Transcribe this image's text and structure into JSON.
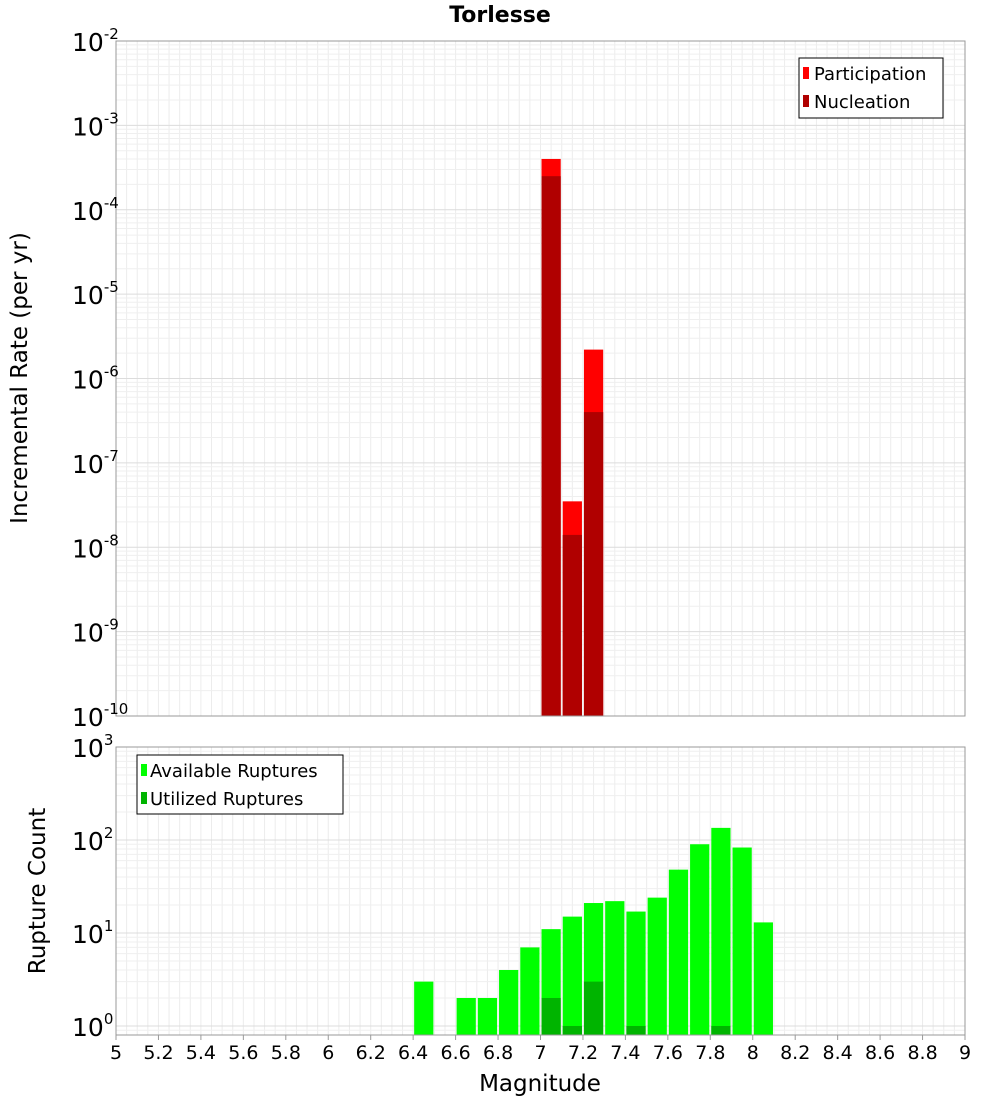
{
  "title": "Torlesse",
  "xlabel": "Magnitude",
  "x_ticks": [
    "5",
    "5.2",
    "5.4",
    "5.6",
    "5.8",
    "6",
    "6.2",
    "6.4",
    "6.6",
    "6.8",
    "7",
    "7.2",
    "7.4",
    "7.6",
    "7.8",
    "8",
    "8.2",
    "8.4",
    "8.6",
    "8.8",
    "9"
  ],
  "chart_data": [
    {
      "type": "bar",
      "ylabel": "Incremental Rate (per yr)",
      "yscale": "log",
      "ylim": [
        1e-10,
        0.01
      ],
      "xlim": [
        5,
        9
      ],
      "bin_width": 0.1,
      "y_ticks": [
        {
          "base": "10",
          "exp": "-2"
        },
        {
          "base": "10",
          "exp": "-3"
        },
        {
          "base": "10",
          "exp": "-4"
        },
        {
          "base": "10",
          "exp": "-5"
        },
        {
          "base": "10",
          "exp": "-6"
        },
        {
          "base": "10",
          "exp": "-7"
        },
        {
          "base": "10",
          "exp": "-8"
        },
        {
          "base": "10",
          "exp": "-9"
        },
        {
          "base": "10",
          "exp": "-10"
        }
      ],
      "grid": true,
      "legend_position": "top-right",
      "series": [
        {
          "name": "Participation",
          "color": "#ff0000",
          "x": [
            7.05,
            7.15,
            7.25
          ],
          "values": [
            0.0004,
            3.5e-08,
            2.2e-06
          ]
        },
        {
          "name": "Nucleation",
          "color": "#b00000",
          "x": [
            7.05,
            7.15,
            7.25
          ],
          "values": [
            0.00025,
            1.4e-08,
            4e-07
          ]
        }
      ]
    },
    {
      "type": "bar",
      "ylabel": "Rupture Count",
      "yscale": "log",
      "ylim": [
        0.8,
        1000
      ],
      "xlim": [
        5,
        9
      ],
      "bin_width": 0.1,
      "y_ticks": [
        {
          "base": "10",
          "exp": "3"
        },
        {
          "base": "10",
          "exp": "2"
        },
        {
          "base": "10",
          "exp": "1"
        },
        {
          "base": "10",
          "exp": "0"
        }
      ],
      "grid": true,
      "legend_position": "top-left",
      "series": [
        {
          "name": "Available Ruptures",
          "color": "#00ff00",
          "x": [
            6.45,
            6.65,
            6.75,
            6.85,
            6.95,
            7.05,
            7.15,
            7.25,
            7.35,
            7.45,
            7.55,
            7.65,
            7.75,
            7.85,
            7.95,
            8.05
          ],
          "values": [
            3,
            2,
            2,
            4,
            7,
            11,
            15,
            21,
            22,
            17,
            24,
            48,
            90,
            135,
            83,
            13
          ]
        },
        {
          "name": "Utilized Ruptures",
          "color": "#00b400",
          "x": [
            7.05,
            7.15,
            7.25,
            7.45,
            7.85
          ],
          "values": [
            2,
            1,
            3,
            1,
            1
          ]
        }
      ]
    }
  ]
}
